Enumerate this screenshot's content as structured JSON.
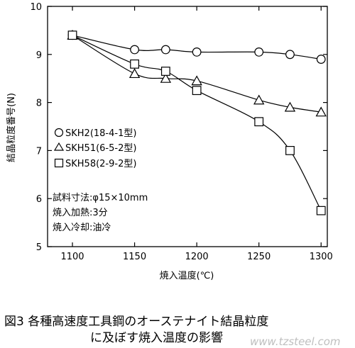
{
  "chart_data": {
    "type": "line",
    "xlabel": "焼入温度(℃)",
    "ylabel": "結晶粒度番号(N)",
    "xlim": [
      1080,
      1305
    ],
    "ylim": [
      5,
      10
    ],
    "xticks": [
      1100,
      1150,
      1200,
      1250,
      1300
    ],
    "yticks": [
      5,
      6,
      7,
      8,
      9,
      10
    ],
    "grid": false,
    "legend_position": "center-left",
    "series": [
      {
        "name": "SKH2(18-4-1型)",
        "marker": "circle",
        "x": [
          1100,
          1150,
          1175,
          1200,
          1250,
          1275,
          1300
        ],
        "y": [
          9.4,
          9.1,
          9.1,
          9.05,
          9.05,
          9.0,
          8.9
        ]
      },
      {
        "name": "SKH51(6-5-2型)",
        "marker": "triangle",
        "x": [
          1100,
          1150,
          1175,
          1200,
          1250,
          1275,
          1300
        ],
        "y": [
          9.4,
          8.6,
          8.5,
          8.45,
          8.05,
          7.9,
          7.8
        ]
      },
      {
        "name": "SKH58(2-9-2型)",
        "marker": "square",
        "x": [
          1100,
          1150,
          1175,
          1200,
          1250,
          1275,
          1300
        ],
        "y": [
          9.4,
          8.8,
          8.65,
          8.25,
          7.6,
          7.0,
          5.75
        ]
      }
    ],
    "annotations": [
      "試料寸法:φ15×10mm",
      "焼入加熱:3分",
      "焼入冷却:油冷"
    ]
  },
  "caption": {
    "line1": "図3  各種高速度工具鋼のオーステナイト結晶粒度",
    "line2": "に及ぼす焼入温度の影響"
  },
  "watermark": "www.tzsteel.com"
}
